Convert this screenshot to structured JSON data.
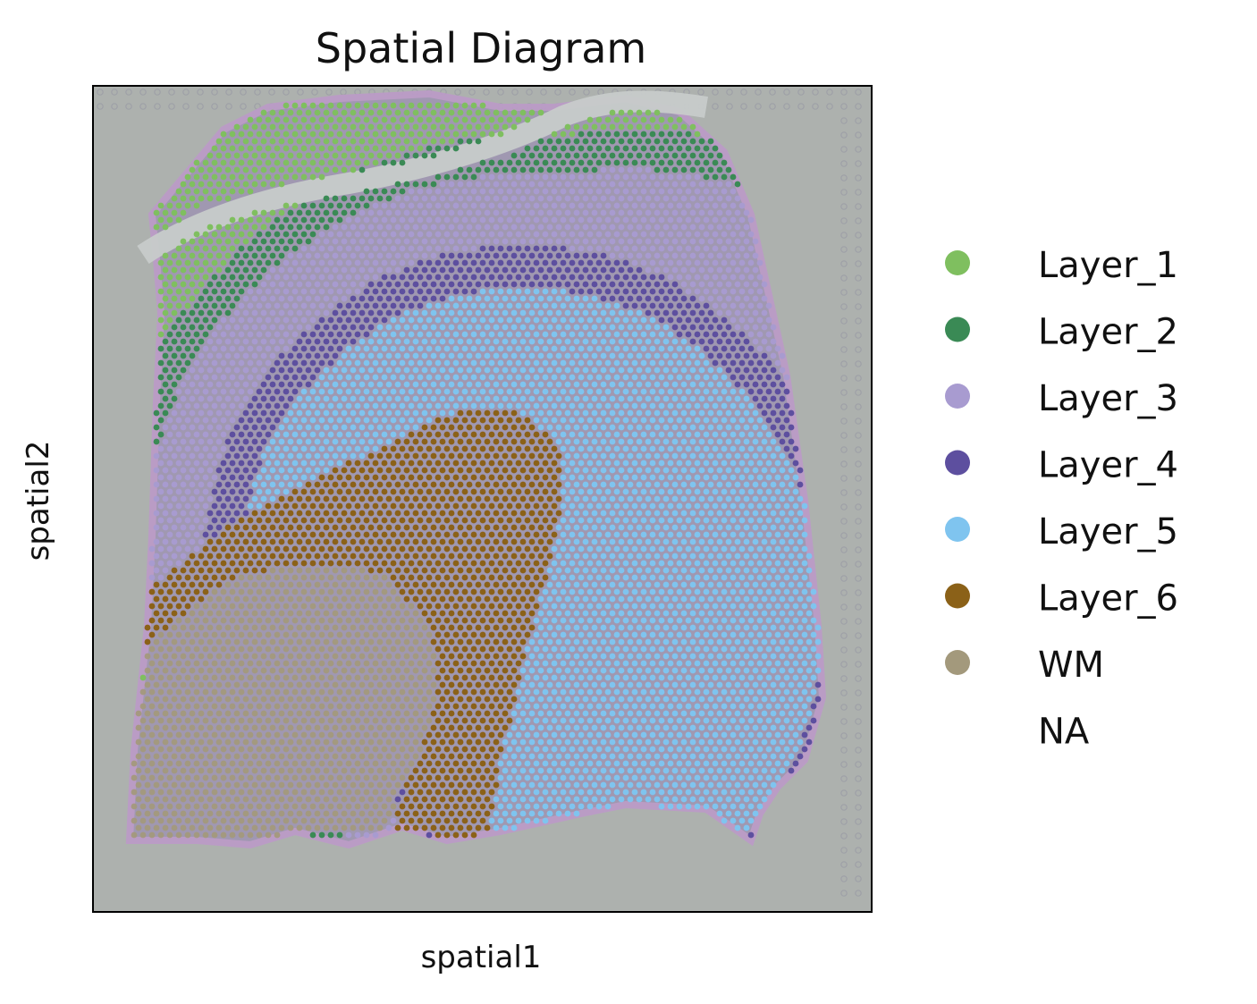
{
  "chart_data": {
    "type": "scatter",
    "title": "Spatial Diagram",
    "xlabel": "spatial1",
    "ylabel": "spatial2",
    "grid": false,
    "legend_position": "right",
    "background": "gray histology image",
    "series": [
      {
        "name": "Layer_1",
        "color": "#7fbf5f"
      },
      {
        "name": "Layer_2",
        "color": "#3a8a55"
      },
      {
        "name": "Layer_3",
        "color": "#a89bd0"
      },
      {
        "name": "Layer_4",
        "color": "#5d4f9f"
      },
      {
        "name": "Layer_5",
        "color": "#7fc4ef"
      },
      {
        "name": "Layer_6",
        "color": "#8b6118"
      },
      {
        "name": "WM",
        "color": "#a3997c"
      },
      {
        "name": "NA",
        "color": "#ffffff"
      }
    ]
  }
}
